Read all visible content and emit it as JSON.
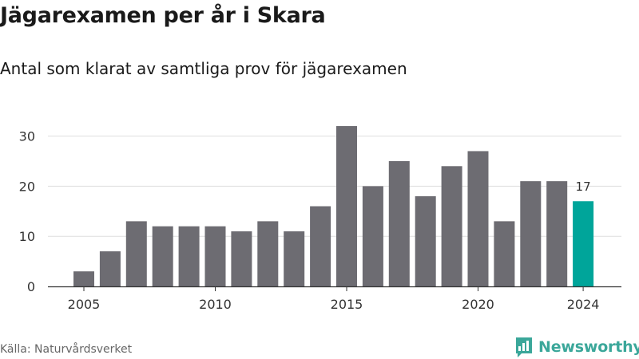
{
  "title": "Jägarexamen per år i Skara",
  "subtitle": "Antal som klarat av samtliga prov för jägarexamen",
  "source": "Källa: Naturvårdsverket",
  "brand": {
    "name": "Newsworthy",
    "icon": "newsworthy-logo-icon",
    "color": "#3ba79a"
  },
  "colors": {
    "bar": "#6d6c72",
    "highlight": "#00a59a",
    "grid": "#dddddd",
    "axis": "#333333"
  },
  "chart_data": {
    "type": "bar",
    "x": [
      2005,
      2006,
      2007,
      2008,
      2009,
      2010,
      2011,
      2012,
      2013,
      2014,
      2015,
      2016,
      2017,
      2018,
      2019,
      2020,
      2021,
      2022,
      2023,
      2024
    ],
    "values": [
      3,
      7,
      13,
      12,
      12,
      12,
      11,
      13,
      11,
      16,
      32,
      20,
      25,
      18,
      24,
      27,
      13,
      21,
      21,
      17
    ],
    "x_ticks": [
      2005,
      2010,
      2015,
      2020,
      2024
    ],
    "y_ticks": [
      0,
      10,
      20,
      30
    ],
    "ylim": [
      0,
      33
    ],
    "grid": true,
    "highlight_last": true,
    "annotations": [
      {
        "x": 2024,
        "label": "17"
      }
    ]
  }
}
